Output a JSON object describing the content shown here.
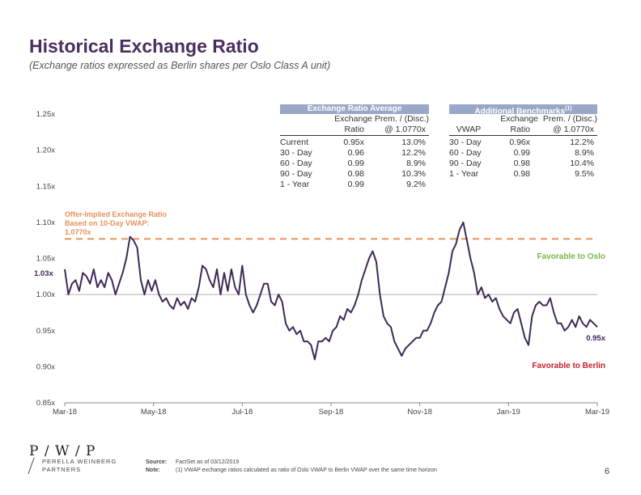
{
  "header": {
    "title": "Historical Exchange Ratio",
    "subtitle": "(Exchange ratios expressed as Berlin shares per Oslo Class A unit)"
  },
  "chart_data": {
    "type": "line",
    "ylim": [
      0.85,
      1.25
    ],
    "y_ticks": [
      "1.25x",
      "1.20x",
      "1.15x",
      "1.10x",
      "1.05x",
      "1.00x",
      "0.95x",
      "0.90x",
      "0.85x"
    ],
    "y_tick_values": [
      1.25,
      1.2,
      1.15,
      1.1,
      1.05,
      1.0,
      0.95,
      0.9,
      0.85
    ],
    "x_ticks": [
      "Mar-18",
      "May-18",
      "Jul-18",
      "Sep-18",
      "Nov-18",
      "Jan-19",
      "Mar-19"
    ],
    "reference_lines": [
      {
        "name": "offer_ratio",
        "value": 1.077,
        "style": "dashed",
        "color": "#e8915a"
      },
      {
        "name": "parity",
        "value": 1.0,
        "style": "solid",
        "color": "#b0b0b0"
      }
    ],
    "series": [
      {
        "name": "Exchange Ratio",
        "color": "#3d2a58",
        "values": [
          1.035,
          1.0,
          1.015,
          1.02,
          1.005,
          1.03,
          1.025,
          1.015,
          1.035,
          1.01,
          1.02,
          1.01,
          1.03,
          1.02,
          1.0,
          1.015,
          1.03,
          1.05,
          1.08,
          1.075,
          1.065,
          1.02,
          1.0,
          1.02,
          1.005,
          1.02,
          1.0,
          0.99,
          0.995,
          0.985,
          0.98,
          0.995,
          0.985,
          0.99,
          0.98,
          0.995,
          0.99,
          1.01,
          1.04,
          1.035,
          1.02,
          1.01,
          1.035,
          1.0,
          1.03,
          1.005,
          1.035,
          1.01,
          1.0,
          1.04,
          1.0,
          0.985,
          0.975,
          0.985,
          1.0,
          1.015,
          1.015,
          0.99,
          0.985,
          1.0,
          0.99,
          0.96,
          0.95,
          0.955,
          0.945,
          0.95,
          0.935,
          0.935,
          0.93,
          0.91,
          0.935,
          0.935,
          0.94,
          0.935,
          0.95,
          0.955,
          0.97,
          0.965,
          0.98,
          0.975,
          0.985,
          1.0,
          1.02,
          1.035,
          1.05,
          1.06,
          1.045,
          1.0,
          0.97,
          0.96,
          0.955,
          0.935,
          0.925,
          0.915,
          0.925,
          0.93,
          0.935,
          0.94,
          0.94,
          0.95,
          0.95,
          0.96,
          0.975,
          0.985,
          0.99,
          1.01,
          1.03,
          1.06,
          1.07,
          1.09,
          1.1,
          1.075,
          1.05,
          1.03,
          1.0,
          1.01,
          0.995,
          1.0,
          0.99,
          0.995,
          0.98,
          0.97,
          0.965,
          0.96,
          0.975,
          0.98,
          0.96,
          0.94,
          0.93,
          0.97,
          0.985,
          0.99,
          0.985,
          0.985,
          0.995,
          0.975,
          0.96,
          0.96,
          0.95,
          0.955,
          0.965,
          0.955,
          0.97,
          0.96,
          0.955,
          0.965,
          0.96,
          0.955
        ]
      }
    ],
    "annotations": {
      "offer_label": "Offer-Implied Exchange Ratio\nBased on 10-Day VWAP:\n1.0770x",
      "favorable_oslo": "Favorable to Oslo",
      "favorable_berlin": "Favorable to Berlin",
      "start_label": "1.03x",
      "end_label": "0.95x"
    }
  },
  "table_left": {
    "heading": "Exchange Ratio Average",
    "col1_top": "Exchange",
    "col1_bottom": "Ratio",
    "col2_top": "Prem. / (Disc.)",
    "col2_bottom": "@ 1.0770x",
    "rows": [
      {
        "label": "Current",
        "ratio": "0.95x",
        "prem": "13.0%"
      },
      {
        "label": "30 - Day",
        "ratio": "0.96",
        "prem": "12.2%"
      },
      {
        "label": "60 - Day",
        "ratio": "0.99",
        "prem": "8.9%"
      },
      {
        "label": "90 - Day",
        "ratio": "0.98",
        "prem": "10.3%"
      },
      {
        "label": "1 - Year",
        "ratio": "0.99",
        "prem": "9.2%"
      }
    ]
  },
  "table_right": {
    "heading": "Additional Benchmarks",
    "heading_sup": "(1)",
    "col0_bottom": "VWAP",
    "col1_top": "Exchange",
    "col1_bottom": "Ratio",
    "col2_top": "Prem. / (Disc.)",
    "col2_bottom": "@ 1.0770x",
    "rows": [
      {
        "label": "30 - Day",
        "ratio": "0.96x",
        "prem": "12.2%"
      },
      {
        "label": "60 - Day",
        "ratio": "0.99",
        "prem": "8.9%"
      },
      {
        "label": "90 - Day",
        "ratio": "0.98",
        "prem": "10.4%"
      },
      {
        "label": "1 - Year",
        "ratio": "0.98",
        "prem": "9.5%"
      }
    ]
  },
  "footer": {
    "logo": "P / W / P",
    "firm_line1": "PERELLA WEINBERG",
    "firm_line2": "PARTNERS",
    "source_label": "Source:",
    "source_text": "FactSet as of 03/12/2019",
    "note_label": "Note:",
    "note_text": "(1)  VWAP exchange ratios calculated as ratio of Oslo VWAP to Berlin VWAP over the same time horizon",
    "page": "6"
  },
  "colors": {
    "title": "#4a2e5f",
    "line": "#3d2a58",
    "offer": "#e8915a",
    "oslo": "#7ab648",
    "berlin": "#c8202a",
    "table_header": "#9aa8c8"
  }
}
